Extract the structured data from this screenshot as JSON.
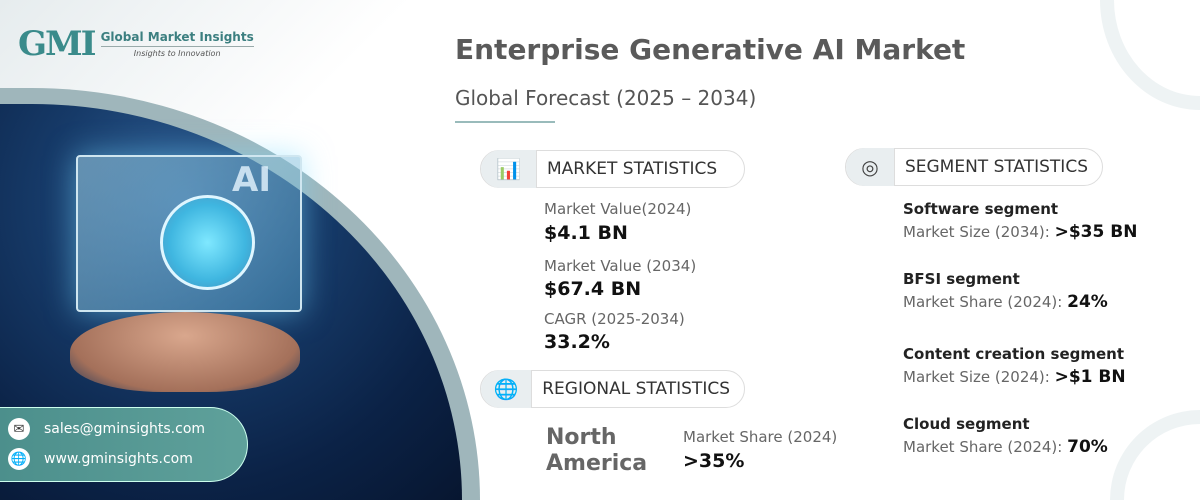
{
  "logo": {
    "mark": "GMI",
    "name": "Global Market Insights",
    "tagline": "Insights to Innovation"
  },
  "header": {
    "title": "Enterprise Generative AI Market",
    "subtitle": "Global Forecast (2025 – 2034)"
  },
  "image": {
    "screen_text": "AI"
  },
  "contact": {
    "email": "sales@gminsights.com",
    "website": "www.gminsights.com"
  },
  "market": {
    "heading": "MARKET STATISTICS",
    "items": [
      {
        "label": "Market Value(2024)",
        "value": "$4.1 BN"
      },
      {
        "label": "Market Value (2034)",
        "value": "$67.4 BN"
      },
      {
        "label": "CAGR (2025-2034)",
        "value": "33.2%"
      }
    ]
  },
  "regional": {
    "heading": "REGIONAL STATISTICS",
    "region": "North America",
    "label": "Market Share (2024)",
    "value": ">35%"
  },
  "segment": {
    "heading": "SEGMENT STATISTICS",
    "items": [
      {
        "name": "Software segment",
        "label": "Market Size (2034):",
        "value": ">$35 BN"
      },
      {
        "name": "BFSI segment",
        "label": "Market Share (2024):",
        "value": "24%"
      },
      {
        "name": "Content creation segment",
        "label": "Market Size (2024):",
        "value": ">$1 BN"
      },
      {
        "name": "Cloud segment",
        "label": "Market Share (2024):",
        "value": "70%"
      }
    ]
  },
  "colors": {
    "accent": "#4c8f8c",
    "title": "#5a5a5a",
    "dark_blue": "#0b2246"
  }
}
